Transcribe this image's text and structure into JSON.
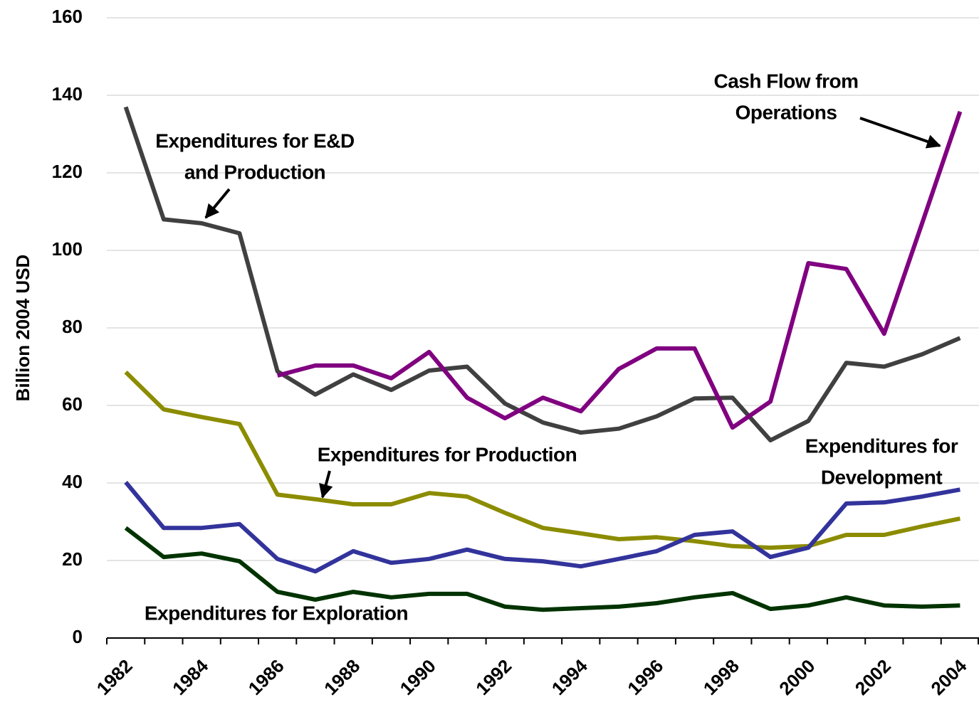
{
  "chart_data": {
    "type": "line",
    "y_label": "Billion 2004 USD",
    "categories": [
      "1982",
      null,
      "1984",
      null,
      "1986",
      null,
      "1988",
      null,
      "1990",
      null,
      "1992",
      null,
      "1994",
      null,
      "1996",
      null,
      "1998",
      null,
      "2000",
      null,
      "2002",
      null,
      "2004"
    ],
    "ylim": [
      0,
      160
    ],
    "yticks": [
      0,
      20,
      40,
      60,
      80,
      100,
      120,
      140,
      160
    ],
    "grid": true,
    "series": [
      {
        "label": [
          "Expenditures for E&D",
          "and Production"
        ],
        "color": "#404040",
        "values": [
          137,
          108,
          107,
          104.4,
          68.8,
          62.8,
          68,
          64,
          69,
          70,
          60.5,
          55.6,
          53,
          54,
          57.2,
          61.8,
          62,
          51,
          56,
          71,
          70,
          73.2,
          77.4
        ]
      },
      {
        "label": [
          "Cash Flow from",
          "Operations"
        ],
        "color": "#800080",
        "values": [
          null,
          null,
          null,
          null,
          67.7,
          70.3,
          70.3,
          67,
          73.8,
          62,
          56.7,
          62,
          58.5,
          69.4,
          74.7,
          74.7,
          54.3,
          61,
          96.7,
          95.2,
          78.5,
          107,
          135.8
        ]
      },
      {
        "label": [
          "Expenditures for Production"
        ],
        "color": "#8c8c00",
        "values": [
          68.6,
          59,
          57,
          55.2,
          37,
          35.8,
          34.5,
          34.5,
          37.4,
          36.5,
          32.3,
          28.4,
          27,
          25.5,
          26,
          25,
          23.7,
          23.3,
          23.7,
          26.6,
          26.6,
          28.8,
          30.8
        ]
      },
      {
        "label": [
          "Expenditures for",
          "Development"
        ],
        "color": "#33339c",
        "values": [
          40.2,
          28.4,
          28.4,
          29.4,
          20.4,
          17.2,
          22.4,
          19.4,
          20.4,
          22.8,
          20.4,
          19.8,
          18.5,
          20.4,
          22.4,
          26.6,
          27.5,
          20.9,
          23.3,
          34.7,
          35,
          36.5,
          38.3
        ]
      },
      {
        "label": [
          "Expenditures for Exploration"
        ],
        "color": "#003300",
        "values": [
          28.4,
          20.9,
          21.8,
          19.8,
          11.9,
          9.9,
          11.9,
          10.5,
          11.4,
          11.4,
          8.1,
          7.3,
          7.7,
          8.1,
          9,
          10.5,
          11.6,
          7.5,
          8.4,
          10.5,
          8.4,
          8.1,
          8.4
        ]
      }
    ]
  }
}
